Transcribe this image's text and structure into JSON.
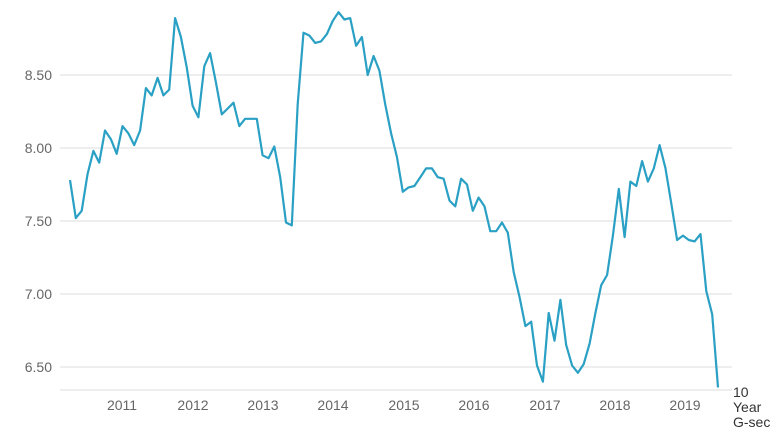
{
  "chart_data": {
    "type": "line",
    "title": "",
    "xlabel": "",
    "ylabel": "",
    "ylim": [
      6.4,
      8.95
    ],
    "grid": "horizontal",
    "legend": "none",
    "yticks": [
      "6.50",
      "7.00",
      "7.50",
      "8.00",
      "8.50"
    ],
    "xticks": [
      "2011",
      "2012",
      "2013",
      "2014",
      "2015",
      "2016",
      "2017",
      "2018",
      "2019"
    ],
    "series_label": [
      "10",
      "Year",
      "G-sec"
    ],
    "colors": {
      "line": "#2aa0c4",
      "grid": "#dcdcdc",
      "axis_text": "#666666"
    },
    "series": [
      {
        "values": [
          7.78,
          7.52,
          7.57,
          7.82,
          7.98,
          7.9,
          8.12,
          8.06,
          7.96,
          8.15,
          8.1,
          8.02,
          8.12,
          8.41,
          8.36,
          8.48,
          8.36,
          8.4,
          8.89,
          8.76,
          8.55,
          8.29,
          8.21,
          8.56,
          8.65,
          8.45,
          8.23,
          8.27,
          8.31,
          8.15,
          8.2,
          8.2,
          8.2,
          7.95,
          7.93,
          8.01,
          7.8,
          7.49,
          7.47,
          8.3,
          8.79,
          8.77,
          8.72,
          8.73,
          8.78,
          8.87,
          8.93,
          8.88,
          8.89,
          8.7,
          8.76,
          8.5,
          8.63,
          8.53,
          8.3,
          8.1,
          7.94,
          7.7,
          7.73,
          7.74,
          7.8,
          7.86,
          7.86,
          7.8,
          7.79,
          7.64,
          7.6,
          7.79,
          7.75,
          7.57,
          7.66,
          7.6,
          7.43,
          7.43,
          7.49,
          7.42,
          7.15,
          6.98,
          6.78,
          6.81,
          6.51,
          6.4,
          6.87,
          6.68,
          6.96,
          6.65,
          6.51,
          6.46,
          6.52,
          6.66,
          6.87,
          7.06,
          7.13,
          7.4,
          7.72,
          7.39,
          7.77,
          7.74,
          7.91,
          7.77,
          7.86,
          8.02,
          7.86,
          7.62,
          7.37,
          7.4,
          7.37,
          7.36,
          7.41,
          7.02,
          6.86,
          6.36
        ]
      }
    ]
  }
}
